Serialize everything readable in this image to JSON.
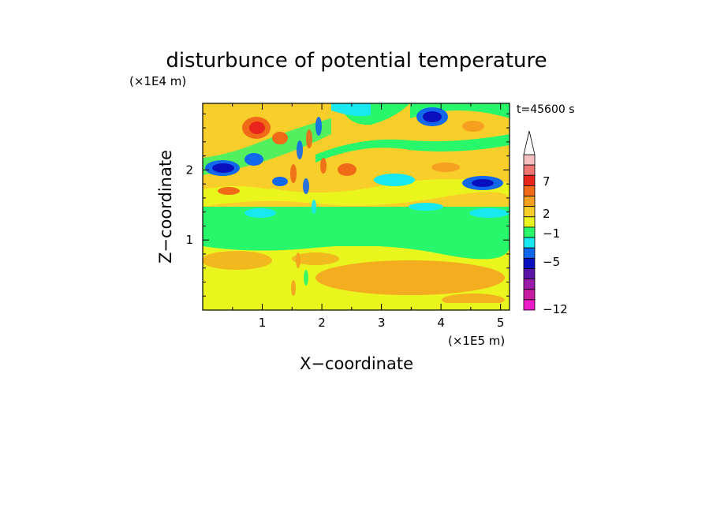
{
  "chart_data": {
    "type": "heatmap",
    "title": "disturbunce of potential temperature",
    "time_label": "t=45600 s",
    "xlabel": "X−coordinate",
    "ylabel": "Z−coordinate",
    "x_unit": "(×1E5 m)",
    "y_unit": "(×1E4 m)",
    "xlim": [
      0,
      5.15
    ],
    "ylim": [
      0,
      2.95
    ],
    "x_ticks": [
      "1",
      "2",
      "3",
      "4",
      "5"
    ],
    "y_ticks": [
      "1",
      "2"
    ],
    "colorbar": {
      "tick_labels": [
        "7",
        "2",
        "−1",
        "−5",
        "−12"
      ],
      "colors": [
        "#ffffff",
        "#f5c0c0",
        "#ef7474",
        "#e8241c",
        "#f06a18",
        "#f5a020",
        "#f8ce2a",
        "#eaf51e",
        "#28f76c",
        "#18e8f0",
        "#1268ec",
        "#0a10c0",
        "#5a14a6",
        "#9a1ca8",
        "#c81ca0",
        "#ec1cc8"
      ],
      "extend_top": true
    },
    "field_description_bands": [
      {
        "z_range": [
          0,
          0.9
        ],
        "dominant": "yellow/orange (0 to 2)"
      },
      {
        "z_range": [
          0.9,
          1.5
        ],
        "dominant": "green (−1 to 0)"
      },
      {
        "z_range": [
          1.5,
          2.95
        ],
        "dominant": "mixed waves, blue minima and red maxima"
      }
    ]
  }
}
